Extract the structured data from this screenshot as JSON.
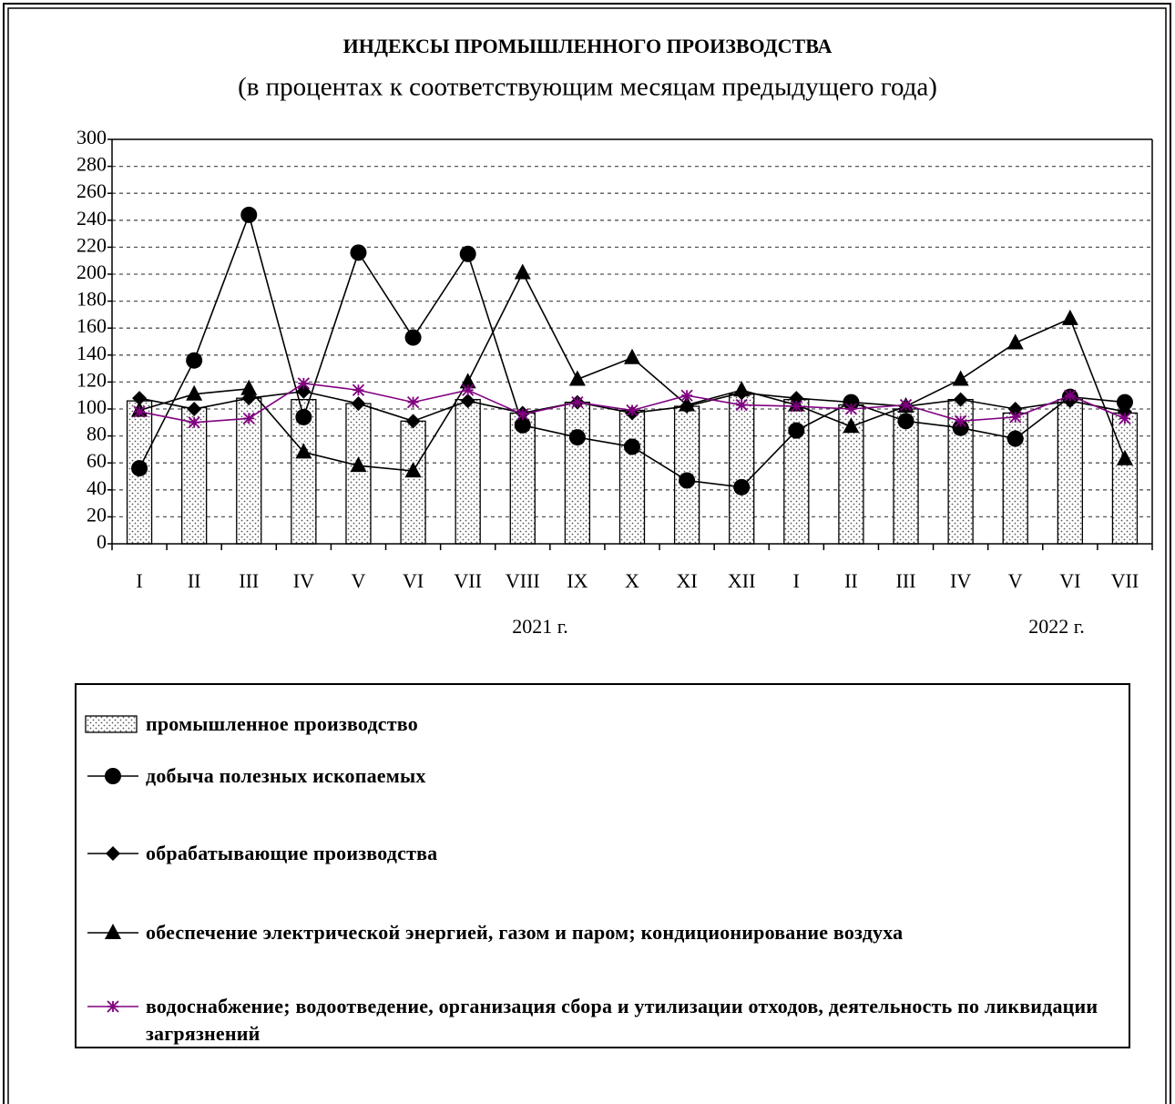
{
  "chart_data": {
    "type": "bar-line",
    "title": "ИНДЕКСЫ  ПРОМЫШЛЕННОГО  ПРОИЗВОДСТВА",
    "subtitle": "(в процентах к соответствующим месяцам предыдущего года)",
    "categories": [
      "I",
      "II",
      "III",
      "IV",
      "V",
      "VI",
      "VII",
      "VIII",
      "IX",
      "X",
      "XI",
      "XII",
      "I",
      "II",
      "III",
      "IV",
      "V",
      "VI",
      "VII"
    ],
    "years": [
      "2021 г.",
      "2022 г."
    ],
    "ylim": [
      0,
      300
    ],
    "yticks": [
      0,
      20,
      40,
      60,
      80,
      100,
      120,
      140,
      160,
      180,
      200,
      220,
      240,
      260,
      280,
      300
    ],
    "grid": true,
    "series": [
      {
        "name": "промышленное производство",
        "type": "bar",
        "marker": "dotted",
        "color": "#000000",
        "values": [
          106,
          101,
          108,
          107,
          104,
          91,
          107,
          97,
          105,
          99,
          102,
          111,
          107,
          103,
          100,
          107,
          97,
          107,
          97
        ]
      },
      {
        "name": "добыча полезных ископаемых",
        "type": "line",
        "marker": "circle",
        "color": "#000000",
        "values": [
          56,
          136,
          244,
          94,
          216,
          153,
          215,
          88,
          79,
          72,
          47,
          42,
          84,
          105,
          91,
          86,
          78,
          109,
          105
        ]
      },
      {
        "name": "обрабатывающие производства",
        "type": "line",
        "marker": "diamond",
        "color": "#000000",
        "values": [
          108,
          100,
          108,
          113,
          104,
          91,
          106,
          97,
          105,
          97,
          102,
          112,
          108,
          105,
          102,
          107,
          100,
          106,
          98
        ]
      },
      {
        "name": "обеспечение электрической энергией, газом и паром; кондиционирование воздуха",
        "type": "line",
        "marker": "triangle",
        "color": "#000000",
        "values": [
          99,
          111,
          115,
          68,
          58,
          54,
          120,
          201,
          122,
          138,
          103,
          114,
          103,
          87,
          102,
          122,
          149,
          167,
          63
        ]
      },
      {
        "name": "водоснабжение; водоотведение, организация сбора и утилизации отходов, деятельность по ликвидации загрязнений",
        "type": "line",
        "marker": "asterisk",
        "color": "#800080",
        "values": [
          98,
          90,
          93,
          119,
          114,
          105,
          114,
          96,
          105,
          99,
          110,
          103,
          102,
          100,
          103,
          91,
          94,
          110,
          93
        ]
      }
    ]
  }
}
